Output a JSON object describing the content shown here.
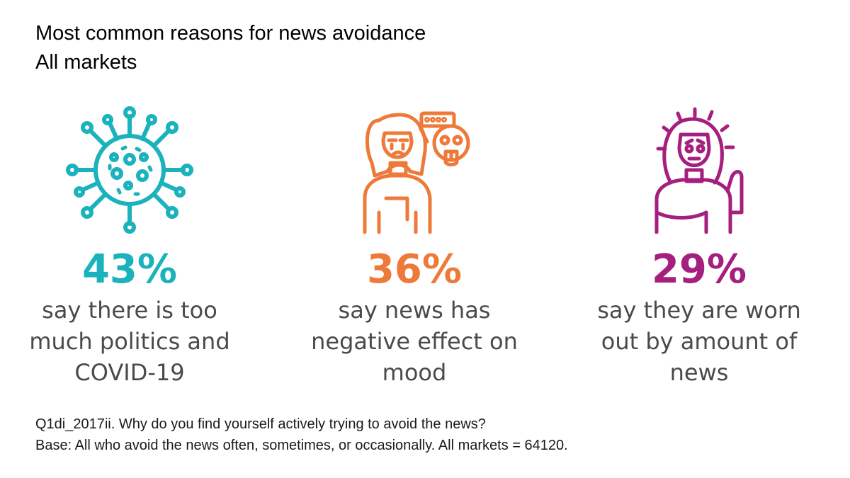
{
  "title": "Most common reasons for news avoidance",
  "subtitle": "All markets",
  "colors": {
    "teal": "#1ab2bd",
    "orange": "#ee7a3a",
    "magenta": "#a51f7e"
  },
  "chart_data": {
    "type": "table",
    "title": "Most common reasons for news avoidance",
    "subtitle": "All markets",
    "unit": "%",
    "items": [
      {
        "value": 43,
        "display": "43%",
        "label": "say there is too much politics and COVID-19",
        "icon": "virus-icon",
        "color": "#1ab2bd"
      },
      {
        "value": 36,
        "display": "36%",
        "label": "say news has negative effect on mood",
        "icon": "sad-person-icon",
        "color": "#ee7a3a"
      },
      {
        "value": 29,
        "display": "29%",
        "label": "say they are worn out by amount of news",
        "icon": "worn-out-person-icon",
        "color": "#a51f7e"
      }
    ]
  },
  "footnote": {
    "question": "Q1di_2017ii. Why do you find yourself actively trying to avoid the news?",
    "base": "Base: All who avoid the news often, sometimes, or occasionally. All markets = 64120."
  }
}
